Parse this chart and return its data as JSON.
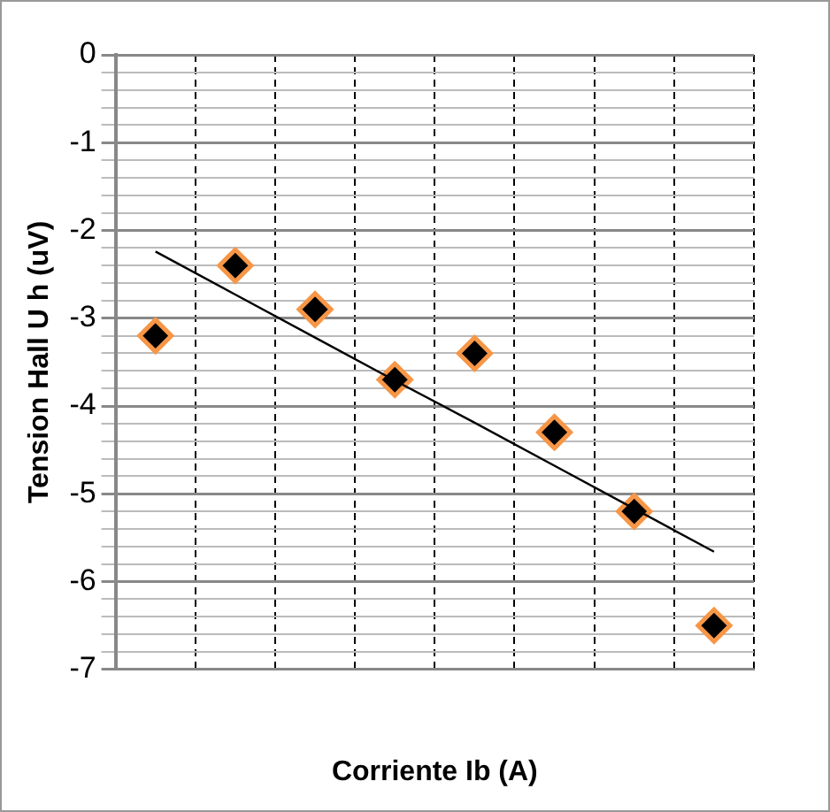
{
  "chart_data": {
    "type": "scatter",
    "xlabel": "Corriente Ib (A)",
    "ylabel": "Tension Hall U h (uV)",
    "categories": [
      null,
      null,
      null,
      null,
      null,
      null,
      null,
      null
    ],
    "series": [
      {
        "color": "#000000",
        "marker": "diamond",
        "values": [
          -3.2,
          -2.4,
          -2.9,
          -3.7,
          -3.4,
          -4.3,
          -5.2,
          -6.5
        ]
      },
      {
        "type": "line",
        "color": "#000000",
        "marker": "none",
        "values": [
          -2.24,
          -2.73,
          -3.22,
          -3.71,
          -4.19,
          -4.68,
          -5.17,
          -5.66
        ]
      }
    ],
    "ylim": [
      -7,
      0
    ],
    "yticks": [
      -7,
      {
        "value": -6.8,
        "label": null
      },
      {
        "value": -6.6,
        "label": null
      },
      {
        "value": -6.4,
        "label": null
      },
      {
        "value": -6.2,
        "label": null
      },
      -6,
      {
        "value": -5.8,
        "label": null
      },
      {
        "value": -5.6,
        "label": null
      },
      {
        "value": -5.4,
        "label": null
      },
      {
        "value": -5.2,
        "label": null
      },
      -5,
      {
        "value": -4.8,
        "label": null
      },
      {
        "value": -4.6,
        "label": null
      },
      {
        "value": -4.4,
        "label": null
      },
      {
        "value": -4.2,
        "label": null
      },
      -4,
      {
        "value": -3.8,
        "label": null
      },
      {
        "value": -3.6,
        "label": null
      },
      {
        "value": -3.4,
        "label": null
      },
      {
        "value": -3.2,
        "label": null
      },
      -3,
      {
        "value": -2.8,
        "label": null
      },
      {
        "value": -2.6,
        "label": null
      },
      {
        "value": -2.4,
        "label": null
      },
      {
        "value": -2.2,
        "label": null
      },
      -2,
      {
        "value": -1.8,
        "label": null
      },
      {
        "value": -1.6,
        "label": null
      },
      {
        "value": -1.4,
        "label": null
      },
      {
        "value": -1.2,
        "label": null
      },
      -1,
      {
        "value": -0.8,
        "label": null
      },
      {
        "value": -0.6,
        "label": null
      },
      {
        "value": -0.4,
        "label": null
      },
      {
        "value": -0.2,
        "label": null
      },
      0
    ],
    "grid": true,
    "legend": false
  }
}
